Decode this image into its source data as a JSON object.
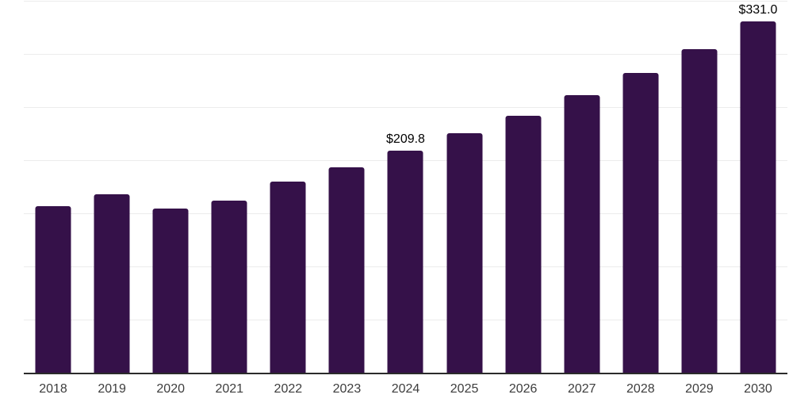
{
  "chart_data": {
    "type": "bar",
    "title": "",
    "xlabel": "",
    "ylabel": "",
    "ylim": [
      0,
      350
    ],
    "gridline_step": 50,
    "grid": "horizontal",
    "legend": "none",
    "y_tick_labels_visible": false,
    "categories": [
      "2018",
      "2019",
      "2020",
      "2021",
      "2022",
      "2023",
      "2024",
      "2025",
      "2026",
      "2027",
      "2028",
      "2029",
      "2030"
    ],
    "points": [
      {
        "category": "2018",
        "value": 157.4,
        "label": ""
      },
      {
        "category": "2019",
        "value": 168.6,
        "label": ""
      },
      {
        "category": "2020",
        "value": 155.5,
        "label": ""
      },
      {
        "category": "2021",
        "value": 163.0,
        "label": ""
      },
      {
        "category": "2022",
        "value": 180.8,
        "label": ""
      },
      {
        "category": "2023",
        "value": 194.2,
        "label": ""
      },
      {
        "category": "2024",
        "value": 209.8,
        "label": "$209.8"
      },
      {
        "category": "2025",
        "value": 226.0,
        "label": ""
      },
      {
        "category": "2026",
        "value": 242.8,
        "label": ""
      },
      {
        "category": "2027",
        "value": 261.9,
        "label": ""
      },
      {
        "category": "2028",
        "value": 282.8,
        "label": ""
      },
      {
        "category": "2029",
        "value": 305.6,
        "label": ""
      },
      {
        "category": "2030",
        "value": 331.0,
        "label": "$331.0"
      }
    ],
    "colors": {
      "bar": "#351149",
      "axis_line": "#2b2b2b",
      "gridline": "#ececec",
      "value_label": "#000000",
      "tick_label": "#3d3d3d",
      "background": "#ffffff"
    }
  }
}
